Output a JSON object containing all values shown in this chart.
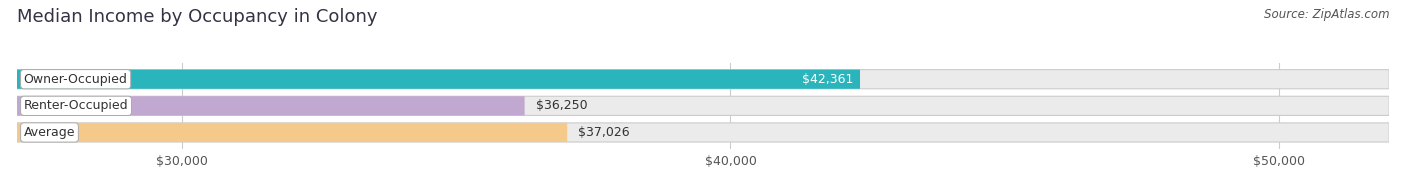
{
  "title": "Median Income by Occupancy in Colony",
  "source": "Source: ZipAtlas.com",
  "categories": [
    "Owner-Occupied",
    "Renter-Occupied",
    "Average"
  ],
  "values": [
    42361,
    36250,
    37026
  ],
  "labels": [
    "$42,361",
    "$36,250",
    "$37,026"
  ],
  "bar_colors": [
    "#2ab5bd",
    "#c0a8d0",
    "#f5c98a"
  ],
  "bg_color": "#ebebeb",
  "xlim": [
    27000,
    52000
  ],
  "xticks": [
    30000,
    40000,
    50000
  ],
  "xtick_labels": [
    "$30,000",
    "$40,000",
    "$50,000"
  ],
  "bar_height": 0.72,
  "title_fontsize": 13,
  "label_fontsize": 9,
  "value_fontsize": 9,
  "tick_fontsize": 9,
  "source_fontsize": 8.5,
  "label_colors": [
    "#333333",
    "#333333",
    "#333333"
  ],
  "value_label_colors": [
    "#ffffff",
    "#333333",
    "#333333"
  ]
}
